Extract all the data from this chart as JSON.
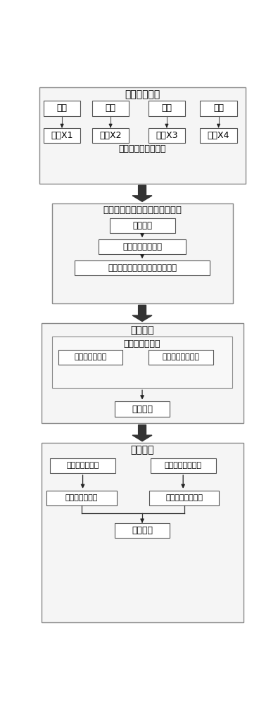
{
  "bg_color": "#ffffff",
  "box_edge_color": "#555555",
  "box_fill": "#ffffff",
  "outer_box_fill": "#ffffff",
  "arrow_color": "#222222",
  "text_color": "#000000",
  "section1_label": "在线监测数据",
  "section1_items": [
    "流量",
    "温度",
    "压力",
    "液位"
  ],
  "section1_sets": [
    "集合X1",
    "集合X2",
    "集合X3",
    "集合X4"
  ],
  "section1_bottom_label": "过程监控数据预处理",
  "section2_title": "基于特征参数的异常点检测模型",
  "section2_steps": [
    "特征提取",
    "特征空间建模分析",
    "依据检测函数判断是否为异常点"
  ],
  "section3_title": "异常处理",
  "section3_subtitle": "异常点统计分类",
  "section3_items": [
    "可恢复性异常点",
    "不可恢复性异常点"
  ],
  "section3_bottom": "报警警示",
  "section4_title": "异常验证",
  "section4_left_top": "可恢复性异常点",
  "section4_right_top": "不可恢复性异常点",
  "section4_left_bottom": "误差异常值验证",
  "section4_right_bottom": "检定装置检定验证",
  "section4_final": "验证结果"
}
